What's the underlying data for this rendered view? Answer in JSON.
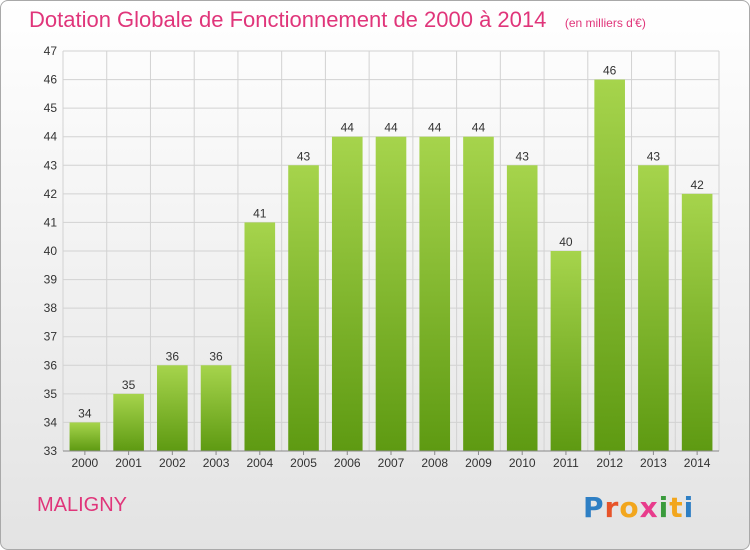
{
  "title": "Dotation Globale de Fonctionnement de 2000 à 2014",
  "subtitle": "(en milliers d'€)",
  "commune": "MALIGNY",
  "logo": {
    "letters": [
      "P",
      "r",
      "o",
      "x",
      "i",
      "t",
      "i"
    ],
    "colors": [
      "#2e7fc4",
      "#e7542a",
      "#f2a61d",
      "#e83c8c",
      "#3a9b3c",
      "#f2a61d",
      "#2e7fc4"
    ]
  },
  "colors": {
    "title": "#e0357a",
    "bar_light": "#a6d44c",
    "bar_dark": "#5e9a12",
    "grid": "#d2d2d2",
    "text": "#333333"
  },
  "chart_data": {
    "type": "bar",
    "categories": [
      "2000",
      "2001",
      "2002",
      "2003",
      "2004",
      "2005",
      "2006",
      "2007",
      "2008",
      "2009",
      "2010",
      "2011",
      "2012",
      "2013",
      "2014"
    ],
    "values": [
      34,
      35,
      36,
      36,
      41,
      43,
      44,
      44,
      44,
      44,
      43,
      40,
      46,
      43,
      42
    ],
    "ylim": [
      33,
      47
    ],
    "yticks": [
      33,
      34,
      35,
      36,
      37,
      38,
      39,
      40,
      41,
      42,
      43,
      44,
      45,
      46,
      47
    ],
    "grid": true,
    "data_labels": true
  }
}
